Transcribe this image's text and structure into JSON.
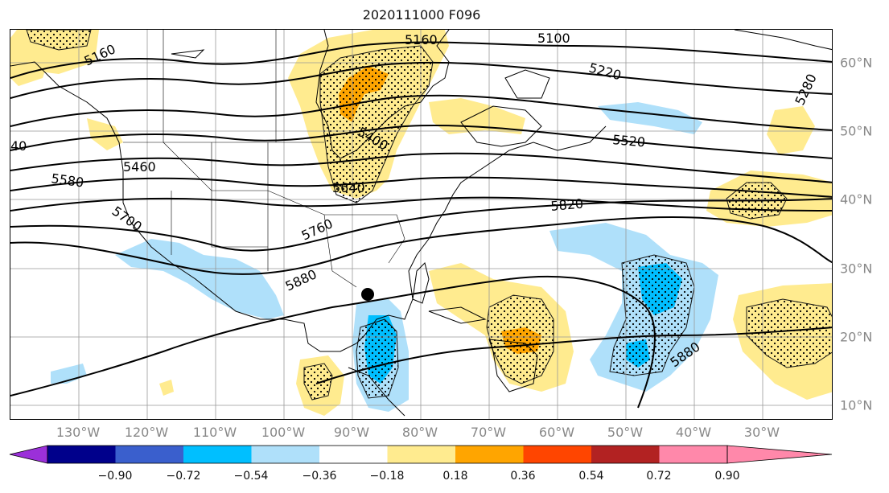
{
  "title": "2020111000 F096",
  "lon_labels": [
    "130°W",
    "120°W",
    "110°W",
    "100°W",
    "90°W",
    "80°W",
    "70°W",
    "60°W",
    "50°W",
    "40°W",
    "30°W"
  ],
  "lat_labels": [
    "60°N",
    "50°N",
    "40°N",
    "30°N",
    "20°N",
    "10°N"
  ],
  "contour_labels": [
    "5160",
    "5100",
    "5160",
    "5220",
    "5280",
    "40",
    "5460",
    "5400",
    "5520",
    "5580",
    "5640",
    "5700",
    "5820",
    "5760",
    "5880",
    "5880"
  ],
  "colorbar": {
    "ticks": [
      "−0.90",
      "−0.72",
      "−0.54",
      "−0.36",
      "−0.18",
      "0.18",
      "0.36",
      "0.54",
      "0.72",
      "0.90"
    ],
    "colors": [
      "#9b30d9",
      "#00008b",
      "#3a5fcd",
      "#00bfff",
      "#afe0fa",
      "#ffffff",
      "#ffeb8f",
      "#ffa500",
      "#ff4500",
      "#b22222",
      "#ff88aa"
    ]
  },
  "colors": {
    "light_blue": "#afe0fa",
    "mid_blue": "#00bfff",
    "light_yellow": "#ffeb8f",
    "orange": "#ffa500"
  }
}
